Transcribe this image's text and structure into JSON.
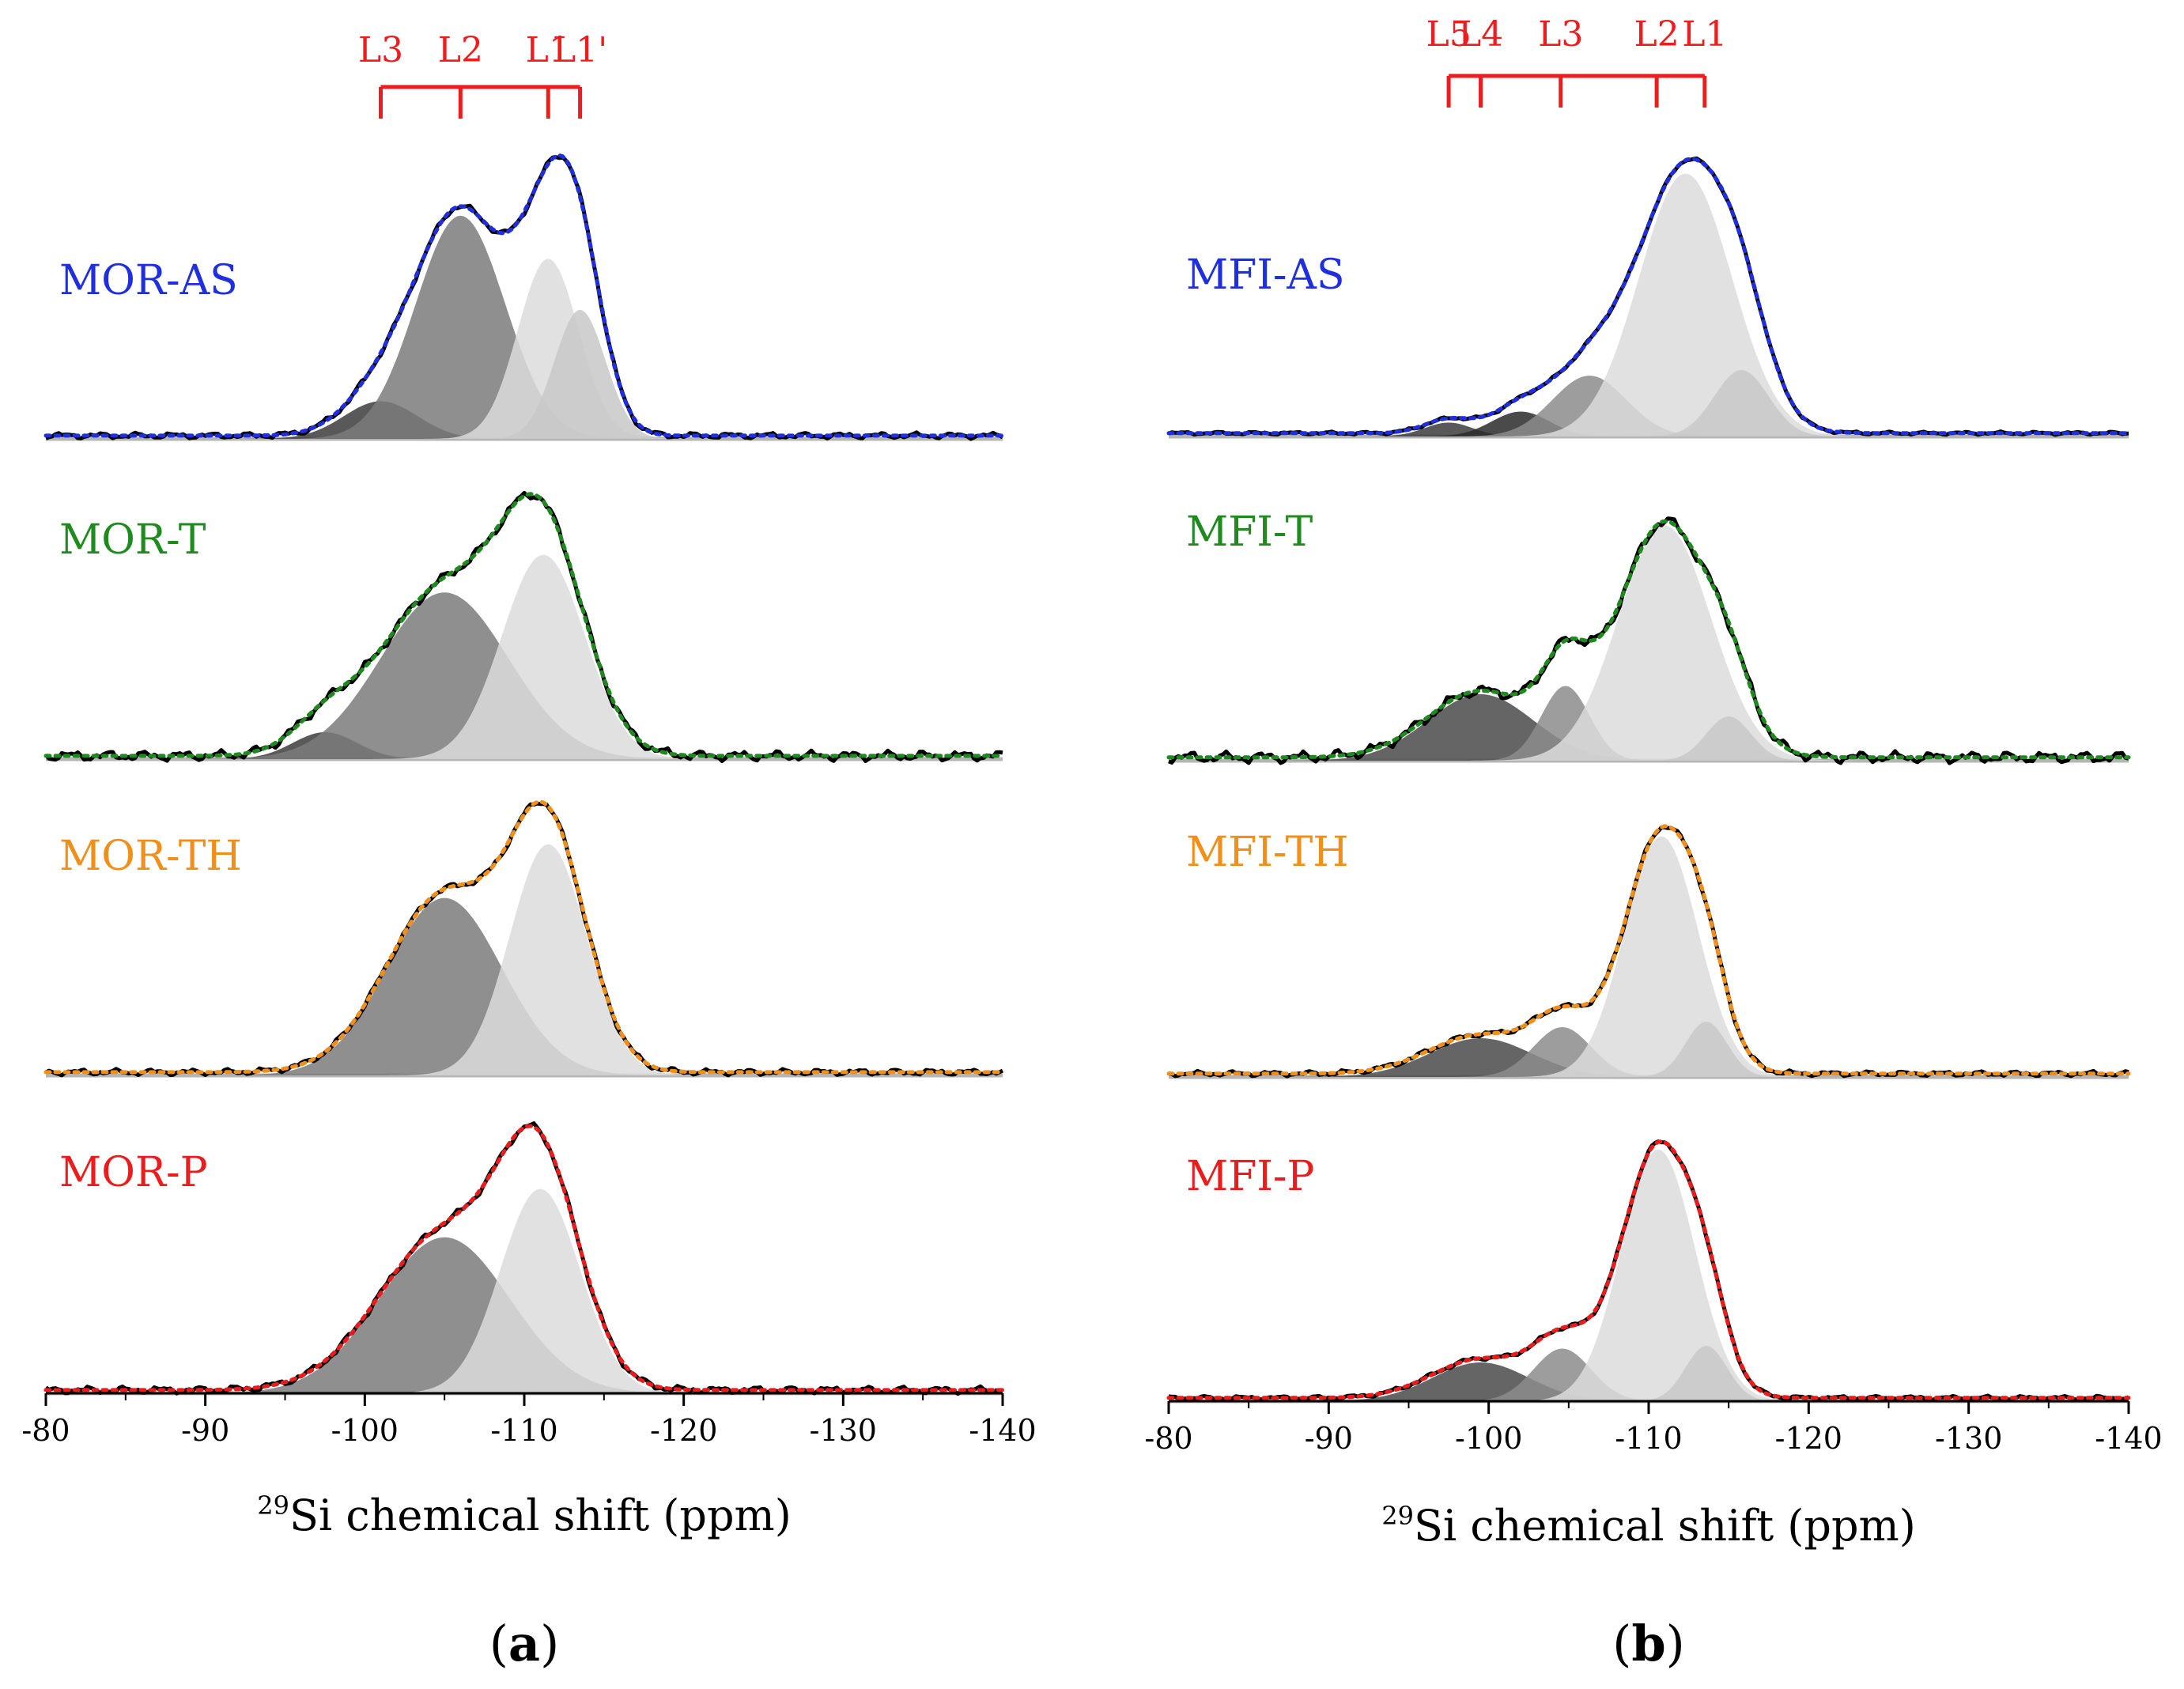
{
  "chart_data": [
    {
      "panel_id": "a",
      "panel_label": "a",
      "type": "line",
      "xlabel_sup": "29",
      "xlabel": "Si chemical shift (ppm)",
      "xlim": [
        -80,
        -140
      ],
      "xticks": [
        -80,
        -90,
        -100,
        -110,
        -120,
        -130,
        -140
      ],
      "tick_labels": [
        "-80",
        "-90",
        "-100",
        "-110",
        "-120",
        "-130",
        "-140"
      ],
      "reference_lines": [
        {
          "label": "L3",
          "ppm": -101
        },
        {
          "label": "L2",
          "ppm": -106
        },
        {
          "label": "L1",
          "ppm": -111.5
        },
        {
          "label": "L1'",
          "ppm": -113.5
        }
      ],
      "samples": [
        {
          "name": "MOR-AS",
          "color": "#1f2fe0",
          "noise": 0.012,
          "components": [
            {
              "center": -101,
              "amp": 0.14,
              "width": 2.3,
              "shade": "#3c3c3c"
            },
            {
              "center": -106,
              "amp": 0.83,
              "width": 2.8,
              "shade": "#7b7b7b"
            },
            {
              "center": -111.5,
              "amp": 0.67,
              "width": 1.9,
              "shade": "#dcdcdc"
            },
            {
              "center": -113.5,
              "amp": 0.48,
              "width": 1.6,
              "shade": "#c8c8c8"
            }
          ]
        },
        {
          "name": "MOR-T",
          "color": "#1f8b1f",
          "noise": 0.02,
          "components": [
            {
              "center": -97.5,
              "amp": 0.1,
              "width": 2.0,
              "shade": "#3c3c3c"
            },
            {
              "center": -105,
              "amp": 0.62,
              "width": 4.0,
              "shade": "#7b7b7b"
            },
            {
              "center": -111.2,
              "amp": 0.76,
              "width": 2.6,
              "shade": "#dcdcdc"
            }
          ]
        },
        {
          "name": "MOR-TH",
          "color": "#f0901a",
          "noise": 0.012,
          "components": [
            {
              "center": -105,
              "amp": 0.66,
              "width": 3.6,
              "shade": "#7b7b7b"
            },
            {
              "center": -111.5,
              "amp": 0.86,
              "width": 2.4,
              "shade": "#dcdcdc"
            }
          ]
        },
        {
          "name": "MOR-P",
          "color": "#ec1c1c",
          "noise": 0.014,
          "components": [
            {
              "center": -105,
              "amp": 0.58,
              "width": 4.1,
              "shade": "#7b7b7b"
            },
            {
              "center": -111,
              "amp": 0.76,
              "width": 2.5,
              "shade": "#dcdcdc"
            }
          ]
        }
      ]
    },
    {
      "panel_id": "b",
      "panel_label": "b",
      "type": "line",
      "xlabel_sup": "29",
      "xlabel": "Si chemical shift (ppm)",
      "xlim": [
        -80,
        -140
      ],
      "xticks": [
        -80,
        -90,
        -100,
        -110,
        -120,
        -130,
        -140
      ],
      "tick_labels": [
        "-80",
        "-90",
        "-100",
        "-110",
        "-120",
        "-130",
        "-140"
      ],
      "reference_lines": [
        {
          "label": "L5",
          "ppm": -97.5
        },
        {
          "label": "L4",
          "ppm": -99.5
        },
        {
          "label": "L3",
          "ppm": -104.5
        },
        {
          "label": "L2",
          "ppm": -110.5
        },
        {
          "label": "L1",
          "ppm": -113.5
        }
      ],
      "samples": [
        {
          "name": "MFI-AS",
          "color": "#1f2fe0",
          "noise": 0.006,
          "components": [
            {
              "center": -97.5,
              "amp": 0.05,
              "width": 1.5,
              "shade": "#3c3c3c"
            },
            {
              "center": -102,
              "amp": 0.09,
              "width": 1.8,
              "shade": "#2a2a2a"
            },
            {
              "center": -106.3,
              "amp": 0.22,
              "width": 2.3,
              "shade": "#8c8c8c"
            },
            {
              "center": -112.3,
              "amp": 0.95,
              "width": 2.9,
              "shade": "#dcdcdc"
            },
            {
              "center": -115.8,
              "amp": 0.24,
              "width": 1.7,
              "shade": "#c8c8c8"
            }
          ]
        },
        {
          "name": "MFI-T",
          "color": "#1f8b1f",
          "noise": 0.022,
          "components": [
            {
              "center": -99.5,
              "amp": 0.24,
              "width": 3.3,
              "shade": "#4a4a4a"
            },
            {
              "center": -104.8,
              "amp": 0.27,
              "width": 1.5,
              "shade": "#8c8c8c"
            },
            {
              "center": -111,
              "amp": 0.85,
              "width": 2.9,
              "shade": "#dcdcdc"
            },
            {
              "center": -115,
              "amp": 0.16,
              "width": 1.4,
              "shade": "#c8c8c8"
            }
          ]
        },
        {
          "name": "MFI-TH",
          "color": "#f0901a",
          "noise": 0.01,
          "components": [
            {
              "center": -99.5,
              "amp": 0.14,
              "width": 3.2,
              "shade": "#4a4a4a"
            },
            {
              "center": -104.6,
              "amp": 0.18,
              "width": 1.8,
              "shade": "#8c8c8c"
            },
            {
              "center": -110.8,
              "amp": 0.87,
              "width": 2.3,
              "shade": "#dcdcdc"
            },
            {
              "center": -113.6,
              "amp": 0.2,
              "width": 1.3,
              "shade": "#c8c8c8"
            }
          ]
        },
        {
          "name": "MFI-P",
          "color": "#ec1c1c",
          "noise": 0.008,
          "components": [
            {
              "center": -99.5,
              "amp": 0.14,
              "width": 3.0,
              "shade": "#4a4a4a"
            },
            {
              "center": -104.6,
              "amp": 0.19,
              "width": 1.8,
              "shade": "#8c8c8c"
            },
            {
              "center": -110.6,
              "amp": 0.91,
              "width": 2.3,
              "shade": "#dcdcdc"
            },
            {
              "center": -113.6,
              "amp": 0.2,
              "width": 1.3,
              "shade": "#c8c8c8"
            }
          ]
        }
      ]
    }
  ]
}
